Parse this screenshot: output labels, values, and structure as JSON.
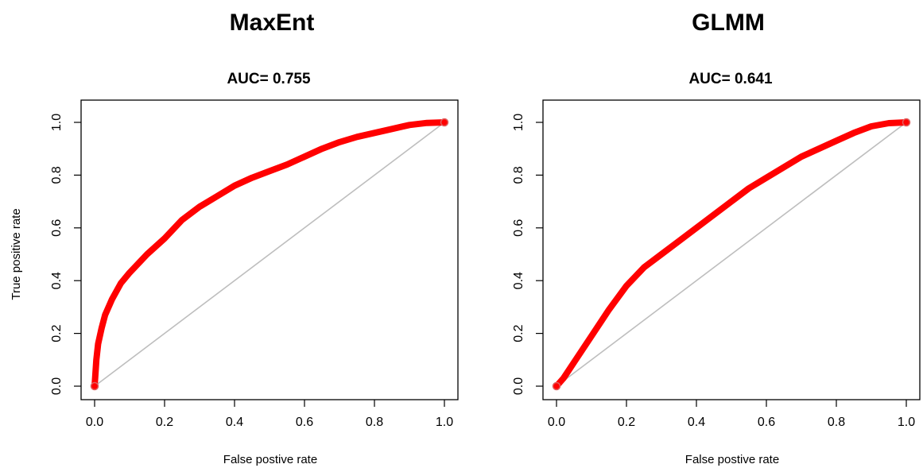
{
  "chart_data": [
    {
      "type": "line",
      "title": "MaxEnt",
      "subtitle": "AUC= 0.755",
      "xlabel": "False postive rate",
      "ylabel": "True positive rate",
      "xlim": [
        0,
        1
      ],
      "ylim": [
        0,
        1
      ],
      "xticks": [
        "0.0",
        "0.2",
        "0.4",
        "0.6",
        "0.8",
        "1.0"
      ],
      "yticks": [
        "0.0",
        "0.2",
        "0.4",
        "0.6",
        "0.8",
        "1.0"
      ],
      "grid": false,
      "series": [
        {
          "color": "#ff0000",
          "x": [
            0.0,
            0.005,
            0.01,
            0.02,
            0.03,
            0.05,
            0.075,
            0.1,
            0.15,
            0.2,
            0.25,
            0.3,
            0.35,
            0.4,
            0.45,
            0.5,
            0.55,
            0.6,
            0.65,
            0.7,
            0.75,
            0.8,
            0.85,
            0.9,
            0.95,
            1.0
          ],
          "y": [
            0.0,
            0.1,
            0.16,
            0.22,
            0.27,
            0.33,
            0.39,
            0.43,
            0.5,
            0.56,
            0.63,
            0.68,
            0.72,
            0.76,
            0.79,
            0.815,
            0.84,
            0.87,
            0.9,
            0.925,
            0.945,
            0.96,
            0.975,
            0.99,
            0.998,
            1.0
          ]
        },
        {
          "color": "#bebebe",
          "x": [
            0,
            1
          ],
          "y": [
            0,
            1
          ]
        }
      ]
    },
    {
      "type": "line",
      "title": "GLMM",
      "subtitle": "AUC= 0.641",
      "xlabel": "False postive rate",
      "ylabel": "",
      "xlim": [
        0,
        1
      ],
      "ylim": [
        0,
        1
      ],
      "xticks": [
        "0.0",
        "0.2",
        "0.4",
        "0.6",
        "0.8",
        "1.0"
      ],
      "yticks": [
        "0.0",
        "0.2",
        "0.4",
        "0.6",
        "0.8",
        "1.0"
      ],
      "grid": false,
      "series": [
        {
          "color": "#ff0000",
          "x": [
            0.0,
            0.02,
            0.05,
            0.1,
            0.15,
            0.2,
            0.25,
            0.3,
            0.35,
            0.4,
            0.45,
            0.5,
            0.55,
            0.6,
            0.65,
            0.7,
            0.75,
            0.8,
            0.85,
            0.9,
            0.95,
            1.0
          ],
          "y": [
            0.0,
            0.03,
            0.09,
            0.19,
            0.29,
            0.38,
            0.45,
            0.5,
            0.55,
            0.6,
            0.65,
            0.7,
            0.75,
            0.79,
            0.83,
            0.87,
            0.9,
            0.93,
            0.96,
            0.985,
            0.997,
            1.0
          ]
        },
        {
          "color": "#bebebe",
          "x": [
            0,
            1
          ],
          "y": [
            0,
            1
          ]
        }
      ]
    }
  ]
}
